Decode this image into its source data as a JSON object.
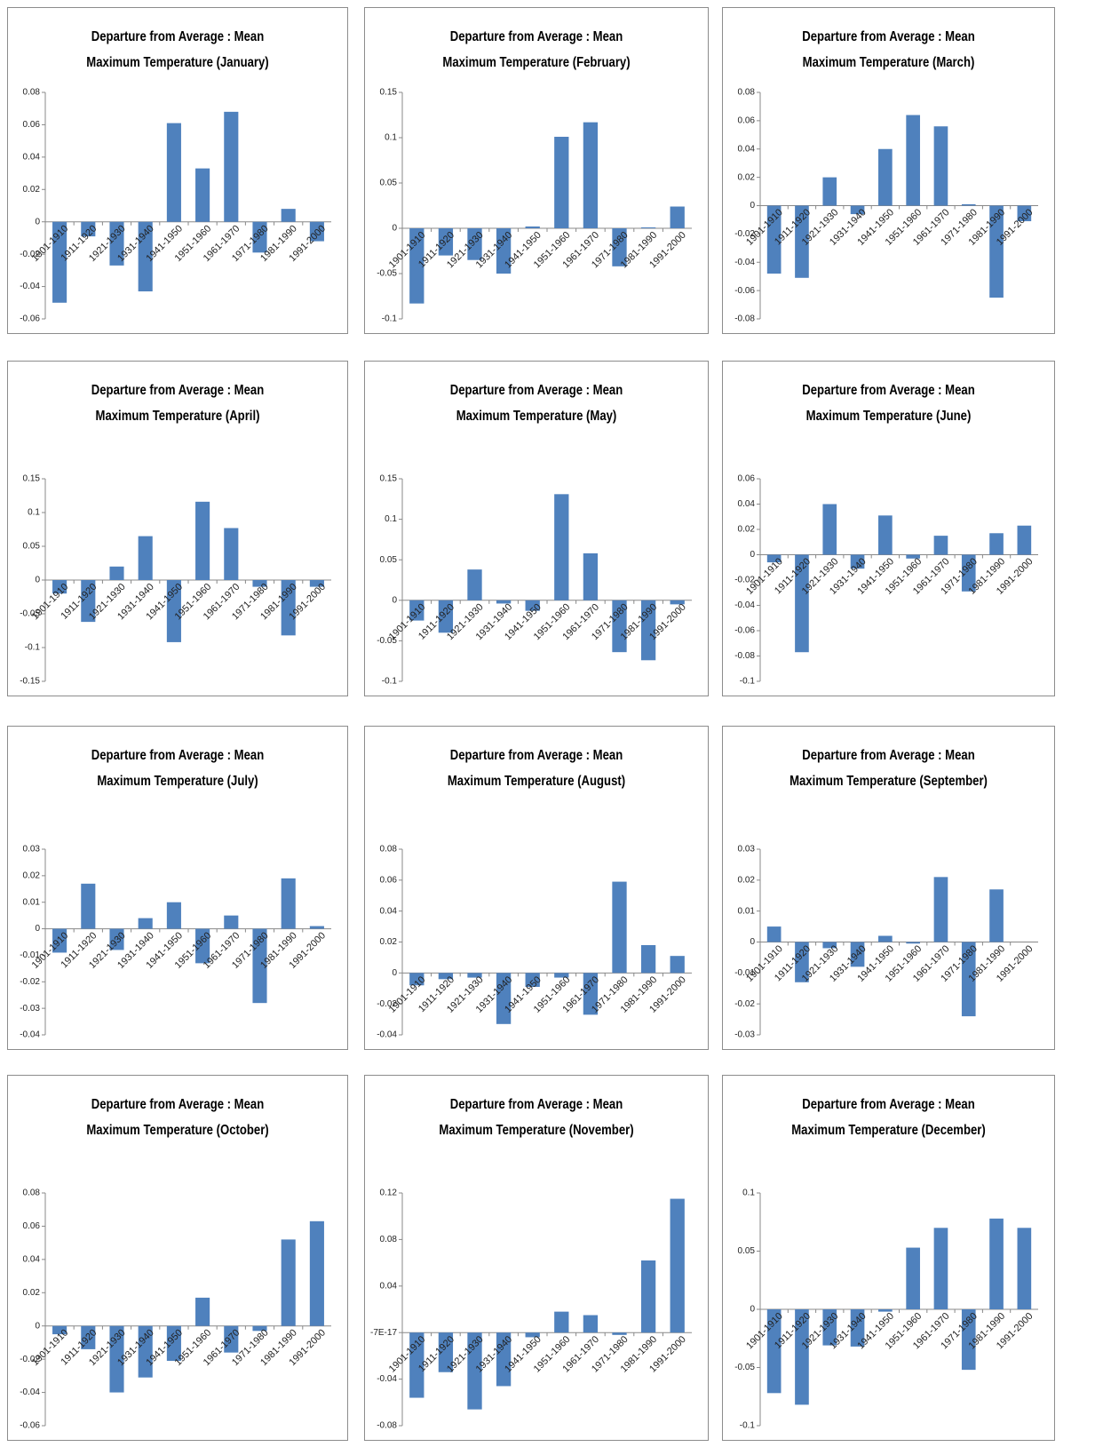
{
  "chart_data": [
    {
      "type": "bar",
      "title": "Departure from Average : Mean Maximum Temperature (January)",
      "color": "#4f81bd",
      "categories": [
        "1901-1910",
        "1911-1920",
        "1921-1930",
        "1931-1940",
        "1941-1950",
        "1951-1960",
        "1961-1970",
        "1971-1980",
        "1981-1990",
        "1991-2000"
      ],
      "values": [
        -0.05,
        -0.009,
        -0.027,
        -0.043,
        0.061,
        0.033,
        0.068,
        -0.019,
        0.008,
        -0.012
      ],
      "ylim": [
        -0.06,
        0.08
      ],
      "yticks": [
        -0.06,
        -0.04,
        -0.02,
        0,
        0.02,
        0.04,
        0.06,
        0.08
      ]
    },
    {
      "type": "bar",
      "title": "Departure from Average : Mean Maximum Temperature (February)",
      "color": "#4f81bd",
      "categories": [
        "1901-1910",
        "1911-1920",
        "1921-1930",
        "1931-1940",
        "1941-1950",
        "1951-1960",
        "1961-1970",
        "1971-1980",
        "1981-1990",
        "1991-2000"
      ],
      "values": [
        -0.083,
        -0.03,
        -0.035,
        -0.05,
        0.002,
        0.101,
        0.117,
        -0.042,
        0.001,
        0.024
      ],
      "ylim": [
        -0.1,
        0.15
      ],
      "yticks": [
        -0.1,
        -0.05,
        0,
        0.05,
        0.1,
        0.15
      ]
    },
    {
      "type": "bar",
      "title": "Departure from Average : Mean Maximum Temperature (March)",
      "color": "#4f81bd",
      "categories": [
        "1901-1910",
        "1911-1920",
        "1921-1930",
        "1931-1940",
        "1941-1950",
        "1951-1960",
        "1961-1970",
        "1971-1980",
        "1981-1990",
        "1991-2000"
      ],
      "values": [
        -0.048,
        -0.051,
        0.02,
        -0.006,
        0.04,
        0.064,
        0.056,
        0.001,
        -0.065,
        -0.011
      ],
      "ylim": [
        -0.08,
        0.08
      ],
      "yticks": [
        -0.08,
        -0.06,
        -0.04,
        -0.02,
        0,
        0.02,
        0.04,
        0.06,
        0.08
      ]
    },
    {
      "type": "bar",
      "title": "Departure from Average : Mean Maximum Temperature (April)",
      "color": "#4f81bd",
      "categories": [
        "1901-1910",
        "1911-1920",
        "1921-1930",
        "1931-1940",
        "1941-1950",
        "1951-1960",
        "1961-1970",
        "1971-1980",
        "1981-1990",
        "1991-2000"
      ],
      "values": [
        -0.02,
        -0.062,
        0.02,
        0.065,
        -0.092,
        0.116,
        0.077,
        -0.01,
        -0.082,
        -0.01
      ],
      "ylim": [
        -0.15,
        0.15
      ],
      "yticks": [
        -0.15,
        -0.1,
        -0.05,
        0,
        0.05,
        0.1,
        0.15
      ]
    },
    {
      "type": "bar",
      "title": "Departure from Average : Mean Maximum Temperature (May)",
      "color": "#4f81bd",
      "categories": [
        "1901-1910",
        "1911-1920",
        "1921-1930",
        "1931-1940",
        "1941-1950",
        "1951-1960",
        "1961-1970",
        "1971-1980",
        "1981-1990",
        "1991-2000"
      ],
      "values": [
        -0.025,
        -0.04,
        0.038,
        -0.004,
        -0.013,
        0.131,
        0.058,
        -0.064,
        -0.074,
        -0.005
      ],
      "ylim": [
        -0.1,
        0.15
      ],
      "yticks": [
        -0.1,
        -0.05,
        0,
        0.05,
        0.1,
        0.15
      ]
    },
    {
      "type": "bar",
      "title": "Departure from Average : Mean Maximum Temperature (June)",
      "color": "#4f81bd",
      "categories": [
        "1901-1910",
        "1911-1920",
        "1921-1930",
        "1931-1940",
        "1941-1950",
        "1951-1960",
        "1961-1970",
        "1971-1980",
        "1981-1990",
        "1991-2000"
      ],
      "values": [
        -0.006,
        -0.077,
        0.04,
        -0.011,
        0.031,
        -0.003,
        0.015,
        -0.029,
        0.017,
        0.023
      ],
      "ylim": [
        -0.1,
        0.06
      ],
      "yticks": [
        -0.1,
        -0.08,
        -0.06,
        -0.04,
        -0.02,
        0,
        0.02,
        0.04,
        0.06
      ]
    },
    {
      "type": "bar",
      "title": "Departure from Average : Mean Maximum Temperature (July)",
      "color": "#4f81bd",
      "categories": [
        "1901-1910",
        "1911-1920",
        "1921-1930",
        "1931-1940",
        "1941-1950",
        "1951-1960",
        "1961-1970",
        "1971-1980",
        "1981-1990",
        "1991-2000"
      ],
      "values": [
        -0.009,
        0.017,
        -0.008,
        0.004,
        0.01,
        -0.013,
        0.005,
        -0.028,
        0.019,
        0.001
      ],
      "ylim": [
        -0.04,
        0.03
      ],
      "yticks": [
        -0.04,
        -0.03,
        -0.02,
        -0.01,
        0,
        0.01,
        0.02,
        0.03
      ]
    },
    {
      "type": "bar",
      "title": "Departure from Average : Mean Maximum Temperature (August)",
      "color": "#4f81bd",
      "categories": [
        "1901-1910",
        "1911-1920",
        "1921-1930",
        "1931-1940",
        "1941-1950",
        "1951-1960",
        "1961-1970",
        "1971-1980",
        "1981-1990",
        "1991-2000"
      ],
      "values": [
        -0.008,
        -0.004,
        -0.003,
        -0.033,
        -0.009,
        -0.003,
        -0.027,
        0.059,
        0.018,
        0.011
      ],
      "ylim": [
        -0.04,
        0.08
      ],
      "yticks": [
        -0.04,
        -0.02,
        0,
        0.02,
        0.04,
        0.06,
        0.08
      ]
    },
    {
      "type": "bar",
      "title": "Departure from Average : Mean Maximum Temperature (September)",
      "color": "#4f81bd",
      "categories": [
        "1901-1910",
        "1911-1920",
        "1921-1930",
        "1931-1940",
        "1941-1950",
        "1951-1960",
        "1961-1970",
        "1971-1980",
        "1981-1990",
        "1991-2000"
      ],
      "values": [
        0.005,
        -0.013,
        -0.002,
        -0.008,
        0.002,
        -0.0005,
        0.021,
        -0.024,
        0.017,
        0
      ],
      "ylim": [
        -0.03,
        0.03
      ],
      "yticks": [
        -0.03,
        -0.02,
        -0.01,
        0,
        0.01,
        0.02,
        0.03
      ]
    },
    {
      "type": "bar",
      "title": "Departure from Average : Mean Maximum Temperature (October)",
      "color": "#4f81bd",
      "categories": [
        "1901-1910",
        "1911-1920",
        "1921-1930",
        "1931-1940",
        "1941-1950",
        "1951-1960",
        "1961-1970",
        "1971-1980",
        "1981-1990",
        "1991-2000"
      ],
      "values": [
        -0.005,
        -0.014,
        -0.04,
        -0.031,
        -0.021,
        0.017,
        -0.016,
        -0.003,
        0.052,
        0.063
      ],
      "ylim": [
        -0.06,
        0.08
      ],
      "yticks": [
        -0.06,
        -0.04,
        -0.02,
        0,
        0.02,
        0.04,
        0.06,
        0.08
      ]
    },
    {
      "type": "bar",
      "title": "Departure from Average : Mean Maximum Temperature (November)",
      "color": "#4f81bd",
      "categories": [
        "1901-1910",
        "1911-1920",
        "1921-1930",
        "1931-1940",
        "1941-1950",
        "1951-1960",
        "1961-1970",
        "1971-1980",
        "1981-1990",
        "1991-2000"
      ],
      "values": [
        -0.056,
        -0.034,
        -0.066,
        -0.046,
        -0.004,
        0.018,
        0.015,
        -0.002,
        0.062,
        0.115
      ],
      "ylim": [
        -0.08,
        0.12
      ],
      "yticks": [
        -0.08,
        -0.04,
        {
          "value": -7e-17,
          "label": "-7E-17"
        },
        0.04,
        0.08,
        0.12
      ]
    },
    {
      "type": "bar",
      "title": "Departure from Average : Mean Maximum Temperature (December)",
      "color": "#4f81bd",
      "categories": [
        "1901-1910",
        "1911-1920",
        "1921-1930",
        "1931-1940",
        "1941-1950",
        "1951-1960",
        "1961-1970",
        "1971-1980",
        "1981-1990",
        "1991-2000"
      ],
      "values": [
        -0.072,
        -0.082,
        -0.031,
        -0.032,
        -0.002,
        0.053,
        0.07,
        -0.052,
        0.078,
        0.07
      ],
      "ylim": [
        -0.1,
        0.1
      ],
      "yticks": [
        -0.1,
        -0.05,
        0,
        0.05,
        0.1
      ]
    }
  ]
}
